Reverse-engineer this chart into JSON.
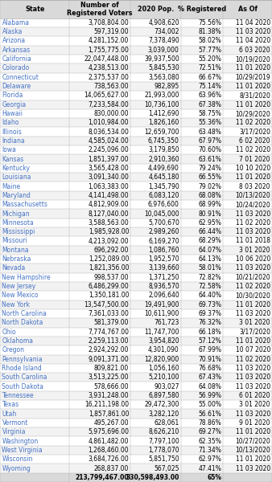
{
  "columns": [
    "State",
    "Number of\nRegistered Voters",
    "2020 Pop.",
    "% Registered",
    "As Of"
  ],
  "rows": [
    [
      "Alabama",
      "3,708,804.00",
      "4,908,620",
      "75.56%",
      "11 04 2020"
    ],
    [
      "Alaska",
      "597,319.00",
      "734,002",
      "81.38%",
      "11 03 2020"
    ],
    [
      "Arizona",
      "4,281,152.00",
      "7,378,490",
      "58.02%",
      "11 04 2020"
    ],
    [
      "Arkansas",
      "1,755,775.00",
      "3,039,000",
      "57.77%",
      "6 03 2020"
    ],
    [
      "California",
      "22,047,448.00",
      "39,937,500",
      "55.20%",
      "10/19/2020"
    ],
    [
      "Colorado",
      "4,238,513.00",
      "5,845,530",
      "72.51%",
      "11 01 2020"
    ],
    [
      "Connecticut",
      "2,375,537.00",
      "3,563,080",
      "66.67%",
      "10/29/2019"
    ],
    [
      "Delaware",
      "738,563.00",
      "982,895",
      "75.14%",
      "11 01 2020"
    ],
    [
      "Florida",
      "14,065,627.00",
      "21,993,000",
      "63.96%",
      "8/31/2020"
    ],
    [
      "Georgia",
      "7,233,584.00",
      "10,736,100",
      "67.38%",
      "11 01 2020"
    ],
    [
      "Hawaii",
      "830,000.00",
      "1,412,690",
      "58.75%",
      "10/29/2020"
    ],
    [
      "Idaho",
      "1,010,984.00",
      "1,826,160",
      "55.36%",
      "11 02 2020"
    ],
    [
      "Illinois",
      "8,036,534.00",
      "12,659,700",
      "63.48%",
      "3/17/2020"
    ],
    [
      "Indiana",
      "4,585,024.00",
      "6,745,350",
      "67.97%",
      "6 02 2020"
    ],
    [
      "Iowa",
      "2,245,096.00",
      "3,179,850",
      "70.60%",
      "11 02 2020"
    ],
    [
      "Kansas",
      "1,851,397.00",
      "2,910,360",
      "63.61%",
      "7 01 2020"
    ],
    [
      "Kentucky",
      "3,565,428.00",
      "4,499,690",
      "79.24%",
      "10 10 2020"
    ],
    [
      "Louisiana",
      "3,091,340.00",
      "4,645,180",
      "66.55%",
      "11 01 2020"
    ],
    [
      "Maine",
      "1,063,383.00",
      "1,345,790",
      "79.02%",
      "8 03 2020"
    ],
    [
      "Maryland",
      "4,141,498.00",
      "6,083,120",
      "68.08%",
      "10/13/2020"
    ],
    [
      "Massachusetts",
      "4,812,909.00",
      "6,976,600",
      "68.99%",
      "10/24/2020"
    ],
    [
      "Michigan",
      "8,127,040.00",
      "10,045,000",
      "80.91%",
      "11 03 2020"
    ],
    [
      "Minnesota",
      "3,588,563.00",
      "5,700,670",
      "62.95%",
      "11 02 2020"
    ],
    [
      "Mississippi",
      "1,985,928.00",
      "2,989,260",
      "66.44%",
      "11 03 2020"
    ],
    [
      "Missouri",
      "4,213,092.00",
      "6,169,270",
      "68.29%",
      "11 01 2018"
    ],
    [
      "Montana",
      "696,292.00",
      "1,086,760",
      "64.07%",
      "3 01 2020"
    ],
    [
      "Nebraska",
      "1,252,089.00",
      "1,952,570",
      "64.13%",
      "10 06 2020"
    ],
    [
      "Nevada",
      "1,821,356.00",
      "3,139,660",
      "58.01%",
      "11 03 2020"
    ],
    [
      "New Hampshire",
      "998,537.00",
      "1,371,250",
      "72.82%",
      "10/21/2020"
    ],
    [
      "New Jersey",
      "6,486,299.00",
      "8,936,570",
      "72.58%",
      "11 02 2020"
    ],
    [
      "New Mexico",
      "1,350,181.00",
      "2,096,640",
      "64.40%",
      "10/30/2020"
    ],
    [
      "New York",
      "13,547,500.00",
      "19,491,900",
      "69.73%",
      "11 01 2020"
    ],
    [
      "North Carolina",
      "7,361,033.00",
      "10,611,900",
      "69.37%",
      "11 03 2020"
    ],
    [
      "North Dakota",
      "581,379.00",
      "761,723",
      "76.32%",
      "3 01 2020"
    ],
    [
      "Ohio",
      "7,774,767.00",
      "11,747,700",
      "66.18%",
      "3/17/2020"
    ],
    [
      "Oklahoma",
      "2,259,113.00",
      "3,954,820",
      "57.12%",
      "11 01 2020"
    ],
    [
      "Oregon",
      "2,924,292.00",
      "4,301,090",
      "67.99%",
      "10 07 2020"
    ],
    [
      "Pennsylvania",
      "9,091,371.00",
      "12,820,900",
      "70.91%",
      "11 02 2020"
    ],
    [
      "Rhode Island",
      "809,821.00",
      "1,056,160",
      "76.68%",
      "11 03 2020"
    ],
    [
      "South Carolina",
      "3,513,225.00",
      "5,210,100",
      "67.43%",
      "11 03 2020"
    ],
    [
      "South Dakota",
      "578,666.00",
      "903,027",
      "64.08%",
      "11 03 2020"
    ],
    [
      "Tennessee",
      "3,931,248.00",
      "6,897,580",
      "56.99%",
      "6 01 2020"
    ],
    [
      "Texas",
      "16,211,198.00",
      "29,472,300",
      "55.00%",
      "3 01 2020"
    ],
    [
      "Utah",
      "1,857,861.00",
      "3,282,120",
      "56.61%",
      "11 03 2020"
    ],
    [
      "Vermont",
      "495,267.00",
      "628,061",
      "78.86%",
      "9 01 2020"
    ],
    [
      "Virginia",
      "5,975,696.00",
      "8,626,210",
      "69.27%",
      "11 01 2020"
    ],
    [
      "Washington",
      "4,861,482.00",
      "7,797,100",
      "62.35%",
      "10/27/2020"
    ],
    [
      "West Virginia",
      "1,268,460.00",
      "1,778,070",
      "71.34%",
      "10/13/2020"
    ],
    [
      "Wisconsin",
      "3,684,726.00",
      "5,851,750",
      "62.97%",
      "11 01 2020"
    ],
    [
      "Wyoming",
      "268,837.00",
      "567,025",
      "47.41%",
      "11 03 2020"
    ],
    [
      "",
      "213,799,467.00",
      "330,598,493.00",
      "65%",
      ""
    ]
  ],
  "header_bg": "#d9d9d9",
  "row_alt_bg": "#f2f2f2",
  "row_bg": "#ffffff",
  "total_bg": "#d9d9d9",
  "state_color": "#4472c4",
  "text_color": "#000000",
  "border_color": "#b0b0b0",
  "figsize": [
    3.38,
    6.0
  ],
  "dpi": 100
}
